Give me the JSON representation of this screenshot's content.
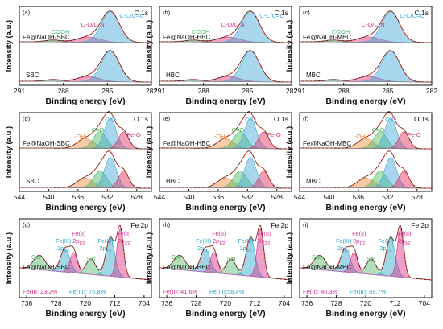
{
  "figure": {
    "ylabel": "Intensity (a.u.)",
    "xlabel": "Binding energy (eV)"
  },
  "colors": {
    "ink": "#111111",
    "envelope": "#e0392a",
    "c_sp2": "#3fa7d6",
    "c_o": "#e0307a",
    "cooh": "#4fc07a",
    "oh": "#ef8a3a",
    "c_eq_o": "#45b85e",
    "fe_o": "#e02a5a",
    "fe_ii": "#d62f86",
    "fe_iii": "#2ba6c9",
    "sat": "#53b86a",
    "fe_background": "#cc70c4"
  },
  "chart_data": {
    "type": "line",
    "panels": [
      {
        "panel_label": "(a)",
        "spectrum": "C 1s",
        "xlim": [
          291,
          282
        ],
        "xticks": [
          291,
          288,
          285,
          282
        ],
        "samples": [
          "Fe@NaOH-SBC",
          "SBC"
        ],
        "peaks": [
          {
            "name": "COOH"
          },
          {
            "name": "C-O/C-N"
          },
          {
            "name": "C-C/C=C"
          }
        ],
        "annotations": []
      },
      {
        "panel_label": "(b)",
        "spectrum": "C 1s",
        "xlim": [
          291,
          282
        ],
        "xticks": [
          291,
          288,
          285,
          282
        ],
        "samples": [
          "Fe@NaOH-HBC",
          "HBC"
        ],
        "peaks": [
          {
            "name": "COOH"
          },
          {
            "name": "C-O/C-N"
          },
          {
            "name": "C-C/C=C"
          }
        ],
        "annotations": []
      },
      {
        "panel_label": "(c)",
        "spectrum": "C 1s",
        "xlim": [
          291,
          282
        ],
        "xticks": [
          291,
          288,
          285,
          282
        ],
        "samples": [
          "Fe@NaOH-MBC",
          "MBC"
        ],
        "peaks": [
          {
            "name": "COOH"
          },
          {
            "name": "C-O/C-N"
          },
          {
            "name": "C-C/C=C"
          }
        ],
        "annotations": []
      },
      {
        "panel_label": "(d)",
        "spectrum": "O 1s",
        "xlim": [
          544,
          526
        ],
        "xticks": [
          544,
          540,
          536,
          532,
          528
        ],
        "samples": [
          "Fe@NaOH-SBC",
          "SBC"
        ],
        "peaks": [
          {
            "name": "-OH"
          },
          {
            "name": "C=O"
          },
          {
            "name": "C-O"
          },
          {
            "name": "Fe-O"
          }
        ],
        "annotations": []
      },
      {
        "panel_label": "(e)",
        "spectrum": "O 1s",
        "xlim": [
          544,
          526
        ],
        "xticks": [
          544,
          540,
          536,
          532,
          528
        ],
        "samples": [
          "Fe@NaOH-HBC",
          "HBC"
        ],
        "peaks": [
          {
            "name": "-OH"
          },
          {
            "name": "C=O"
          },
          {
            "name": "C-O"
          },
          {
            "name": "Fe-O"
          }
        ],
        "annotations": []
      },
      {
        "panel_label": "(f)",
        "spectrum": "O 1s",
        "xlim": [
          544,
          526
        ],
        "xticks": [
          544,
          540,
          536,
          532,
          528
        ],
        "samples": [
          "Fe@NaOH-MBC",
          "MBC"
        ],
        "peaks": [
          {
            "name": "-OH"
          },
          {
            "name": "C=O"
          },
          {
            "name": "C-O"
          },
          {
            "name": "Fe-O"
          }
        ],
        "annotations": []
      },
      {
        "panel_label": "(g)",
        "spectrum": "Fe 2p",
        "xlim": [
          738,
          702
        ],
        "xticks": [
          736,
          728,
          720,
          712,
          704
        ],
        "samples": [
          "Fe@NaOH-SBC"
        ],
        "peaks": [
          {
            "name": "Sat"
          },
          {
            "name": "Fe(III) 2p1/2"
          },
          {
            "name": "Fe(II) 2p1/2"
          },
          {
            "name": "Sat"
          },
          {
            "name": "Fe(III) 2p3/2"
          },
          {
            "name": "Fe(II) 2p3/2"
          }
        ],
        "annotations": [
          "Fe(II): 23.2%",
          "Fe(III): 76.8%"
        ]
      },
      {
        "panel_label": "(h)",
        "spectrum": "Fe 2p",
        "xlim": [
          738,
          702
        ],
        "xticks": [
          736,
          728,
          720,
          712,
          704
        ],
        "samples": [
          "Fe@NaOH-HBC"
        ],
        "peaks": [
          {
            "name": "Sat"
          },
          {
            "name": "Fe(III) 2p1/2"
          },
          {
            "name": "Fe(II) 2p1/2"
          },
          {
            "name": "Sat"
          },
          {
            "name": "Fe(III) 2p3/2"
          },
          {
            "name": "Fe(II) 2p3/2"
          }
        ],
        "annotations": [
          "Fe(II): 41.6%",
          "Fe(III):58.4%"
        ]
      },
      {
        "panel_label": "(i)",
        "spectrum": "Fe 2p",
        "xlim": [
          738,
          702
        ],
        "xticks": [
          736,
          728,
          720,
          712,
          704
        ],
        "samples": [
          "Fe@NaOH-MBC"
        ],
        "peaks": [
          {
            "name": "Sat"
          },
          {
            "name": "Fe(III) 2p1/2"
          },
          {
            "name": "Fe(II) 2p1/2"
          },
          {
            "name": "Sat"
          },
          {
            "name": "Fe(III) 2p3/2"
          },
          {
            "name": "Fe(II) 2p3/2"
          }
        ],
        "annotations": [
          "Fe(II): 40.3%",
          "Fe(III): 59.7%"
        ]
      }
    ]
  }
}
